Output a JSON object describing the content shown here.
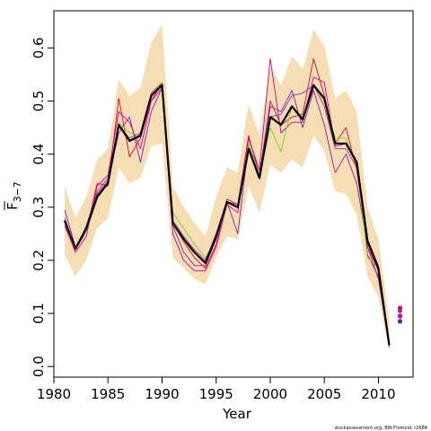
{
  "chart_data": {
    "type": "line",
    "xlabel": "Year",
    "ylabel": "F",
    "ylabel_subscript": "3−7",
    "credit": "stockassessment.org, BW-Fromold, r2684",
    "xlim": [
      1980,
      2013.2
    ],
    "ylim": [
      -0.02,
      0.67
    ],
    "xticks": [
      1980,
      1985,
      1990,
      1995,
      2000,
      2005,
      2010
    ],
    "yticks": [
      0.0,
      0.1,
      0.2,
      0.3,
      0.4,
      0.5,
      0.6
    ],
    "ytick_labels": [
      "0.0",
      "0.1",
      "0.2",
      "0.3",
      "0.4",
      "0.5",
      "0.6"
    ],
    "band_color": "#f5deb3",
    "x": [
      1981,
      1982,
      1983,
      1984,
      1985,
      1986,
      1987,
      1988,
      1989,
      1990,
      1991,
      1992,
      1993,
      1994,
      1995,
      1996,
      1997,
      1998,
      1999,
      2000,
      2001,
      2002,
      2003,
      2004,
      2005,
      2006,
      2007,
      2008,
      2009,
      2010,
      2011
    ],
    "band_upper": [
      0.34,
      0.28,
      0.32,
      0.39,
      0.41,
      0.54,
      0.51,
      0.525,
      0.61,
      0.645,
      0.34,
      0.3,
      0.27,
      0.245,
      0.32,
      0.375,
      0.365,
      0.495,
      0.435,
      0.565,
      0.53,
      0.585,
      0.56,
      0.635,
      0.605,
      0.505,
      0.52,
      0.48,
      0.3,
      0.24,
      0.085
    ],
    "band_lower": [
      0.21,
      0.17,
      0.2,
      0.26,
      0.28,
      0.375,
      0.345,
      0.355,
      0.415,
      0.42,
      0.205,
      0.185,
      0.165,
      0.155,
      0.205,
      0.245,
      0.24,
      0.34,
      0.29,
      0.38,
      0.365,
      0.39,
      0.375,
      0.435,
      0.405,
      0.33,
      0.325,
      0.285,
      0.17,
      0.13,
      0.03
    ],
    "series": [
      {
        "color": "#000000",
        "width": 2.2,
        "values": [
          0.275,
          0.222,
          0.26,
          0.32,
          0.345,
          0.455,
          0.425,
          0.435,
          0.51,
          0.53,
          0.27,
          0.24,
          0.215,
          0.195,
          0.245,
          0.31,
          0.3,
          0.41,
          0.355,
          0.47,
          0.455,
          0.49,
          0.465,
          0.53,
          0.505,
          0.42,
          0.42,
          0.385,
          0.235,
          0.185,
          0.04
        ]
      },
      {
        "color": "#e8003a",
        "width": 0.9,
        "values": [
          0.27,
          0.22,
          0.255,
          0.345,
          0.34,
          0.505,
          0.395,
          0.43,
          0.5,
          0.535,
          0.27,
          0.235,
          0.205,
          0.185,
          0.23,
          0.315,
          0.305,
          0.435,
          0.36,
          0.5,
          0.455,
          0.47,
          0.475,
          0.58,
          0.51,
          0.42,
          0.45,
          0.37,
          0.225,
          0.18,
          0.035
        ]
      },
      {
        "color": "#cc0099",
        "width": 0.9,
        "values": [
          0.265,
          0.215,
          0.245,
          0.34,
          0.36,
          0.48,
          0.46,
          0.41,
          0.5,
          0.525,
          0.25,
          0.2,
          0.18,
          0.18,
          0.225,
          0.305,
          0.29,
          0.43,
          0.37,
          0.58,
          0.44,
          0.46,
          0.46,
          0.545,
          0.535,
          0.415,
          0.42,
          0.38,
          0.21,
          0.17,
          0.035
        ]
      },
      {
        "color": "#8a1da6",
        "width": 0.9,
        "values": [
          0.295,
          0.225,
          0.26,
          0.325,
          0.35,
          0.44,
          0.47,
          0.385,
          0.48,
          0.525,
          0.265,
          0.215,
          0.19,
          0.19,
          0.24,
          0.31,
          0.25,
          0.42,
          0.36,
          0.49,
          0.48,
          0.52,
          0.45,
          0.52,
          0.455,
          0.365,
          0.4,
          0.345,
          0.225,
          0.165,
          0.04
        ]
      },
      {
        "color": "#9b2fae",
        "width": 0.9,
        "values": [
          0.28,
          0.22,
          0.265,
          0.33,
          0.355,
          0.455,
          0.43,
          0.44,
          0.515,
          0.535,
          0.275,
          0.245,
          0.22,
          0.2,
          0.25,
          0.31,
          0.305,
          0.41,
          0.355,
          0.47,
          0.475,
          0.51,
          0.515,
          0.53,
          0.49,
          0.41,
          0.41,
          0.375,
          0.24,
          0.19,
          0.04
        ]
      },
      {
        "color": "#7ccd20",
        "width": 0.9,
        "values": [
          0.275,
          0.225,
          0.255,
          0.315,
          0.345,
          0.46,
          0.44,
          0.435,
          0.51,
          0.535,
          0.29,
          0.26,
          0.23,
          0.205,
          0.245,
          0.31,
          0.3,
          0.42,
          0.36,
          0.45,
          0.405,
          0.49,
          0.47,
          0.53,
          0.5,
          0.43,
          0.43,
          0.38,
          0.205,
          0.185,
          0.035
        ]
      }
    ],
    "points_2012": [
      {
        "color": "#e8003a",
        "value": 0.11
      },
      {
        "color": "#9b2fae",
        "value": 0.105
      },
      {
        "color": "#cc0099",
        "value": 0.095
      },
      {
        "color": "#4a2d8a",
        "value": 0.085
      }
    ]
  }
}
